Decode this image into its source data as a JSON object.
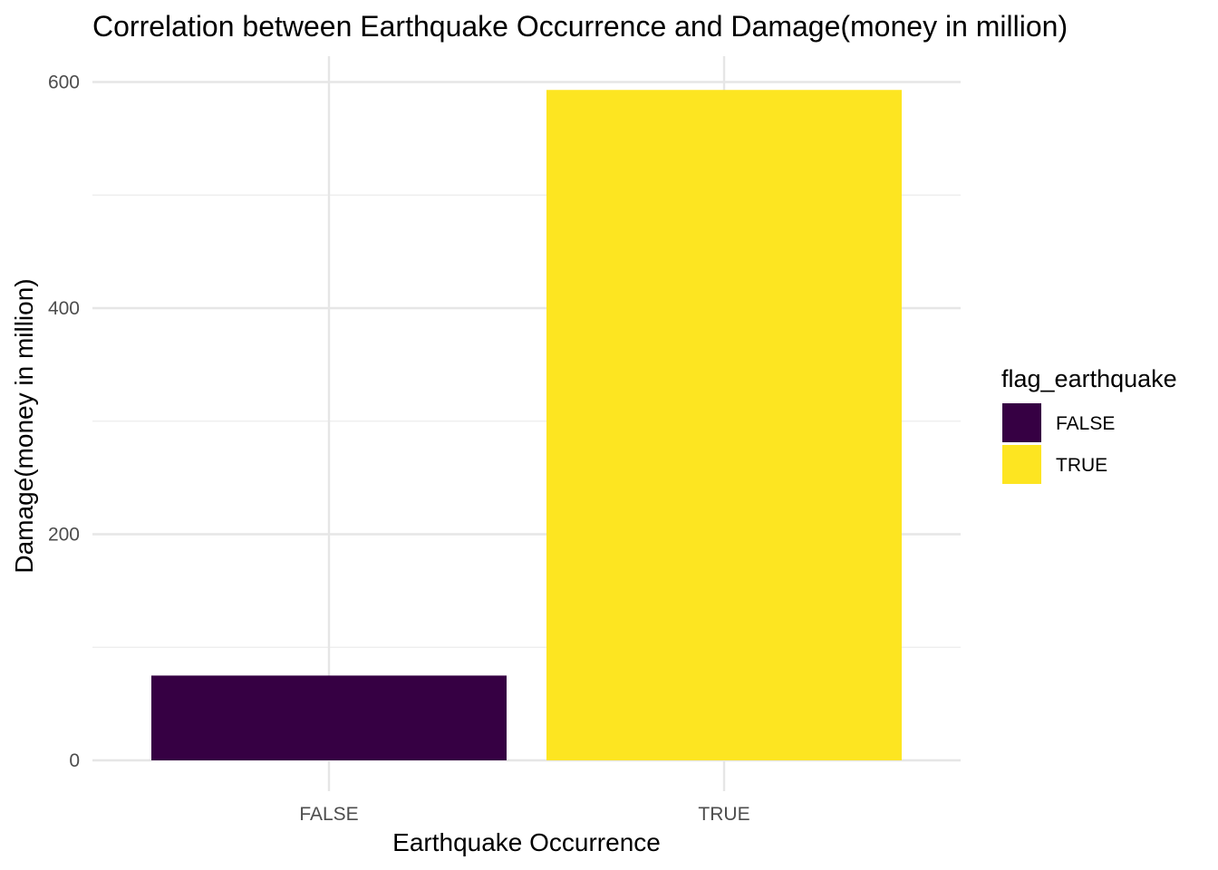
{
  "chart_data": {
    "type": "bar",
    "title": "Correlation between Earthquake Occurrence and Damage(money in million)",
    "xlabel": "Earthquake Occurrence",
    "ylabel": "Damage(money in million)",
    "categories": [
      "FALSE",
      "TRUE"
    ],
    "values": [
      75,
      593
    ],
    "ylim": [
      0,
      600
    ],
    "y_ticks": [
      0,
      200,
      400,
      600
    ],
    "y_minor_ticks": [
      100,
      300,
      500
    ],
    "grid": true,
    "legend": {
      "title": "flag_earthquake",
      "placement": "right",
      "items": [
        {
          "label": "FALSE",
          "color": "#360043"
        },
        {
          "label": "TRUE",
          "color": "#FDE521"
        }
      ]
    },
    "colors": [
      "#360043",
      "#FDE521"
    ]
  }
}
